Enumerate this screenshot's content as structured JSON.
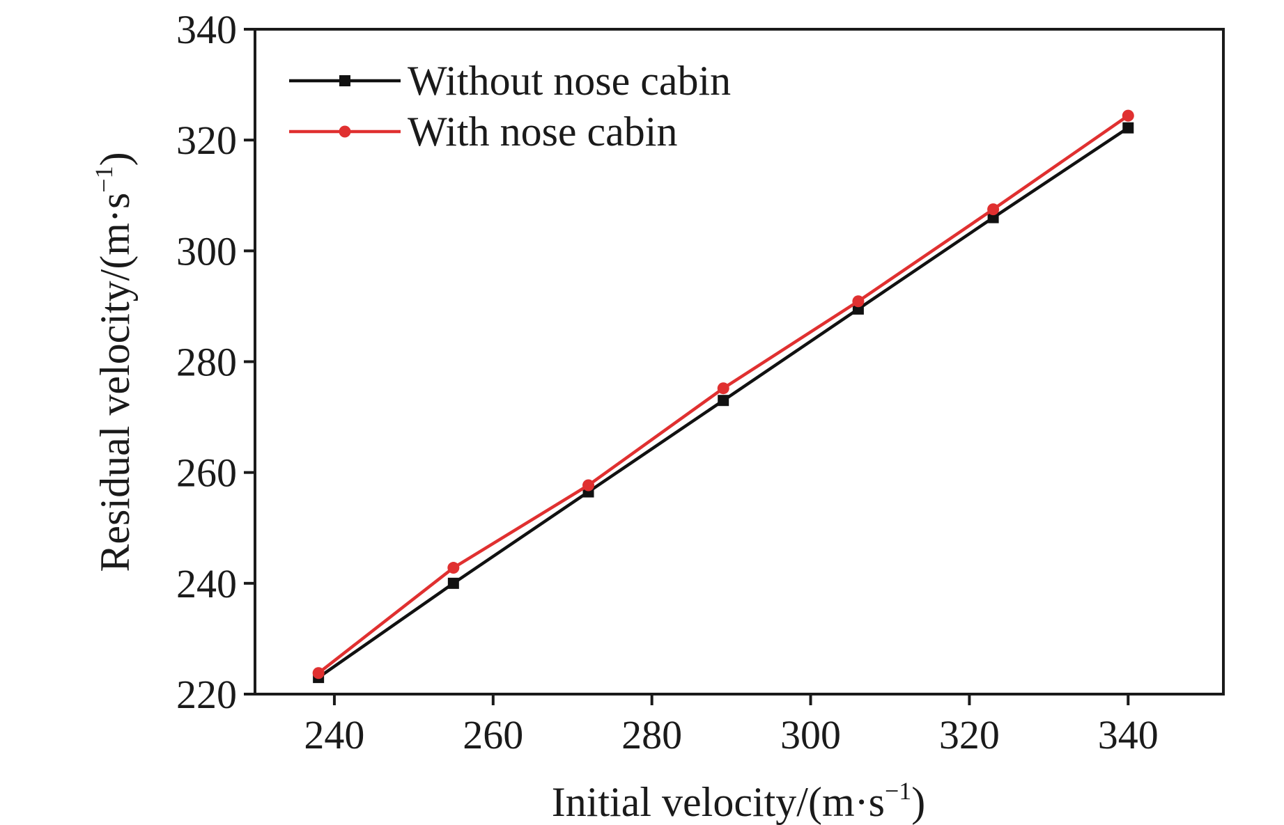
{
  "chart_data": {
    "type": "line",
    "xlabel": "Initial velocity/(m·s",
    "xlabel_sup": "−1",
    "xlabel_end": ")",
    "ylabel": "Residual velocity/(m·s",
    "ylabel_sup": "−1",
    "ylabel_end": ")",
    "xlim": [
      230,
      352
    ],
    "ylim": [
      220,
      340
    ],
    "xticks": [
      240,
      260,
      280,
      300,
      320,
      340
    ],
    "yticks": [
      220,
      240,
      260,
      280,
      300,
      320,
      340
    ],
    "grid": false,
    "legend_position": "top-left",
    "x": [
      238,
      255,
      272,
      289,
      306,
      323,
      340
    ],
    "series": [
      {
        "name": "Without nose cabin",
        "color": "#111111",
        "marker": "square",
        "values": [
          223.0,
          240.0,
          256.5,
          273.0,
          289.5,
          306.0,
          322.2
        ]
      },
      {
        "name": "With nose cabin",
        "color": "#e03030",
        "marker": "circle",
        "values": [
          223.8,
          242.8,
          257.7,
          275.2,
          290.9,
          307.5,
          324.4
        ]
      }
    ]
  }
}
